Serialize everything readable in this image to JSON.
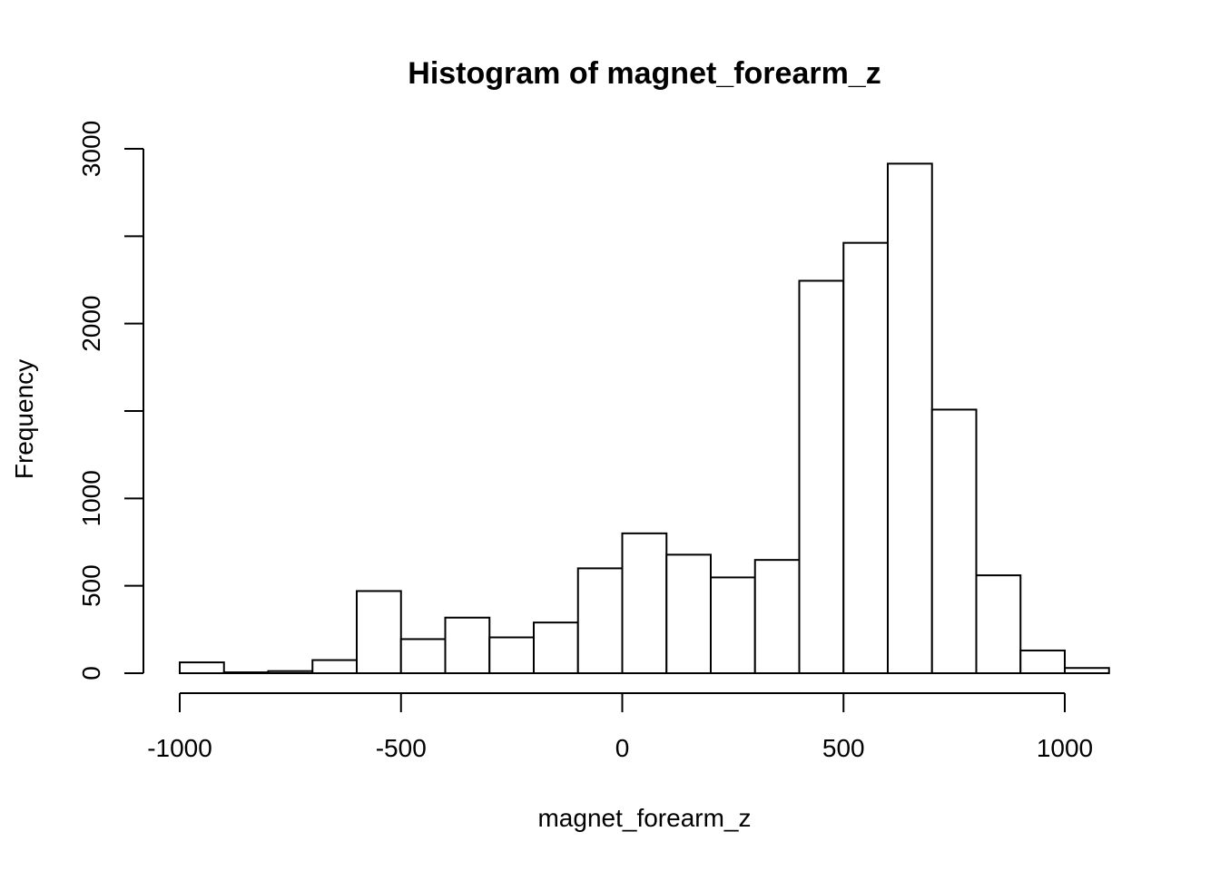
{
  "chart_data": {
    "type": "bar",
    "title": "Histogram of magnet_forearm_z",
    "xlabel": "magnet_forearm_z",
    "ylabel": "Frequency",
    "xlim": [
      -1000,
      1100
    ],
    "ylim": [
      0,
      3000
    ],
    "grid": false,
    "bin_width": 100,
    "bins": [
      {
        "start": -1000,
        "end": -900,
        "count": 62
      },
      {
        "start": -900,
        "end": -800,
        "count": 5
      },
      {
        "start": -800,
        "end": -700,
        "count": 12
      },
      {
        "start": -700,
        "end": -600,
        "count": 75
      },
      {
        "start": -600,
        "end": -500,
        "count": 470
      },
      {
        "start": -500,
        "end": -400,
        "count": 195
      },
      {
        "start": -400,
        "end": -300,
        "count": 318
      },
      {
        "start": -300,
        "end": -200,
        "count": 205
      },
      {
        "start": -200,
        "end": -100,
        "count": 290
      },
      {
        "start": -100,
        "end": 0,
        "count": 600
      },
      {
        "start": 0,
        "end": 100,
        "count": 800
      },
      {
        "start": 100,
        "end": 200,
        "count": 678
      },
      {
        "start": 200,
        "end": 300,
        "count": 548
      },
      {
        "start": 300,
        "end": 400,
        "count": 648
      },
      {
        "start": 400,
        "end": 500,
        "count": 2245
      },
      {
        "start": 500,
        "end": 600,
        "count": 2462
      },
      {
        "start": 600,
        "end": 700,
        "count": 2915
      },
      {
        "start": 700,
        "end": 800,
        "count": 1508
      },
      {
        "start": 800,
        "end": 900,
        "count": 560
      },
      {
        "start": 900,
        "end": 1000,
        "count": 130
      },
      {
        "start": 1000,
        "end": 1100,
        "count": 30
      }
    ],
    "x_ticks": [
      {
        "value": -1000,
        "label": "-1000"
      },
      {
        "value": -500,
        "label": "-500"
      },
      {
        "value": 0,
        "label": "0"
      },
      {
        "value": 500,
        "label": "500"
      },
      {
        "value": 1000,
        "label": "1000"
      }
    ],
    "y_ticks": [
      {
        "value": 0,
        "label": "0"
      },
      {
        "value": 500,
        "label": "500"
      },
      {
        "value": 1000,
        "label": "1000"
      },
      {
        "value": 1500,
        "label": ""
      },
      {
        "value": 2000,
        "label": "2000"
      },
      {
        "value": 2500,
        "label": ""
      },
      {
        "value": 3000,
        "label": "3000"
      }
    ],
    "colors": {
      "bar_fill": "#ffffff",
      "bar_stroke": "#000000",
      "background": "#ffffff"
    }
  }
}
